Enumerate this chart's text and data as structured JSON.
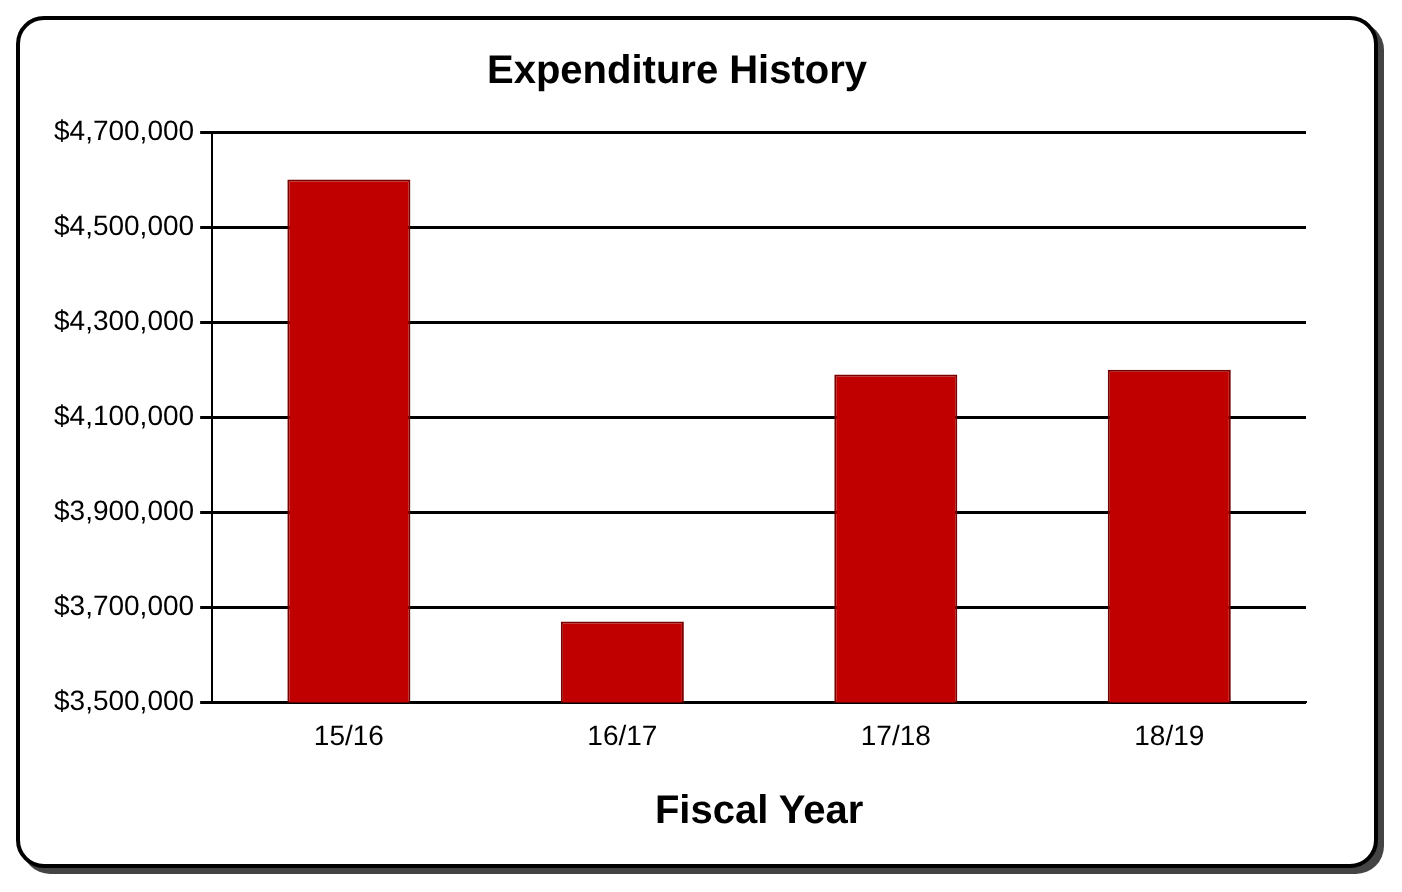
{
  "chart_data": {
    "type": "bar",
    "title": "Expenditure History",
    "xlabel": "Fiscal Year",
    "categories": [
      "15/16",
      "16/17",
      "17/18",
      "18/19"
    ],
    "values": [
      4600000,
      3670000,
      4190000,
      4200000
    ],
    "color": "#c00000",
    "ylim": [
      3500000,
      4700000
    ],
    "yticks": [
      {
        "value": 3500000,
        "label": "$3,500,000"
      },
      {
        "value": 3700000,
        "label": "$3,700,000"
      },
      {
        "value": 3900000,
        "label": "$3,900,000"
      },
      {
        "value": 4100000,
        "label": "$4,100,000"
      },
      {
        "value": 4300000,
        "label": "$4,300,000"
      },
      {
        "value": 4500000,
        "label": "$4,500,000"
      },
      {
        "value": 4700000,
        "label": "$4,700,000"
      }
    ],
    "grid": "y",
    "legend": false
  }
}
